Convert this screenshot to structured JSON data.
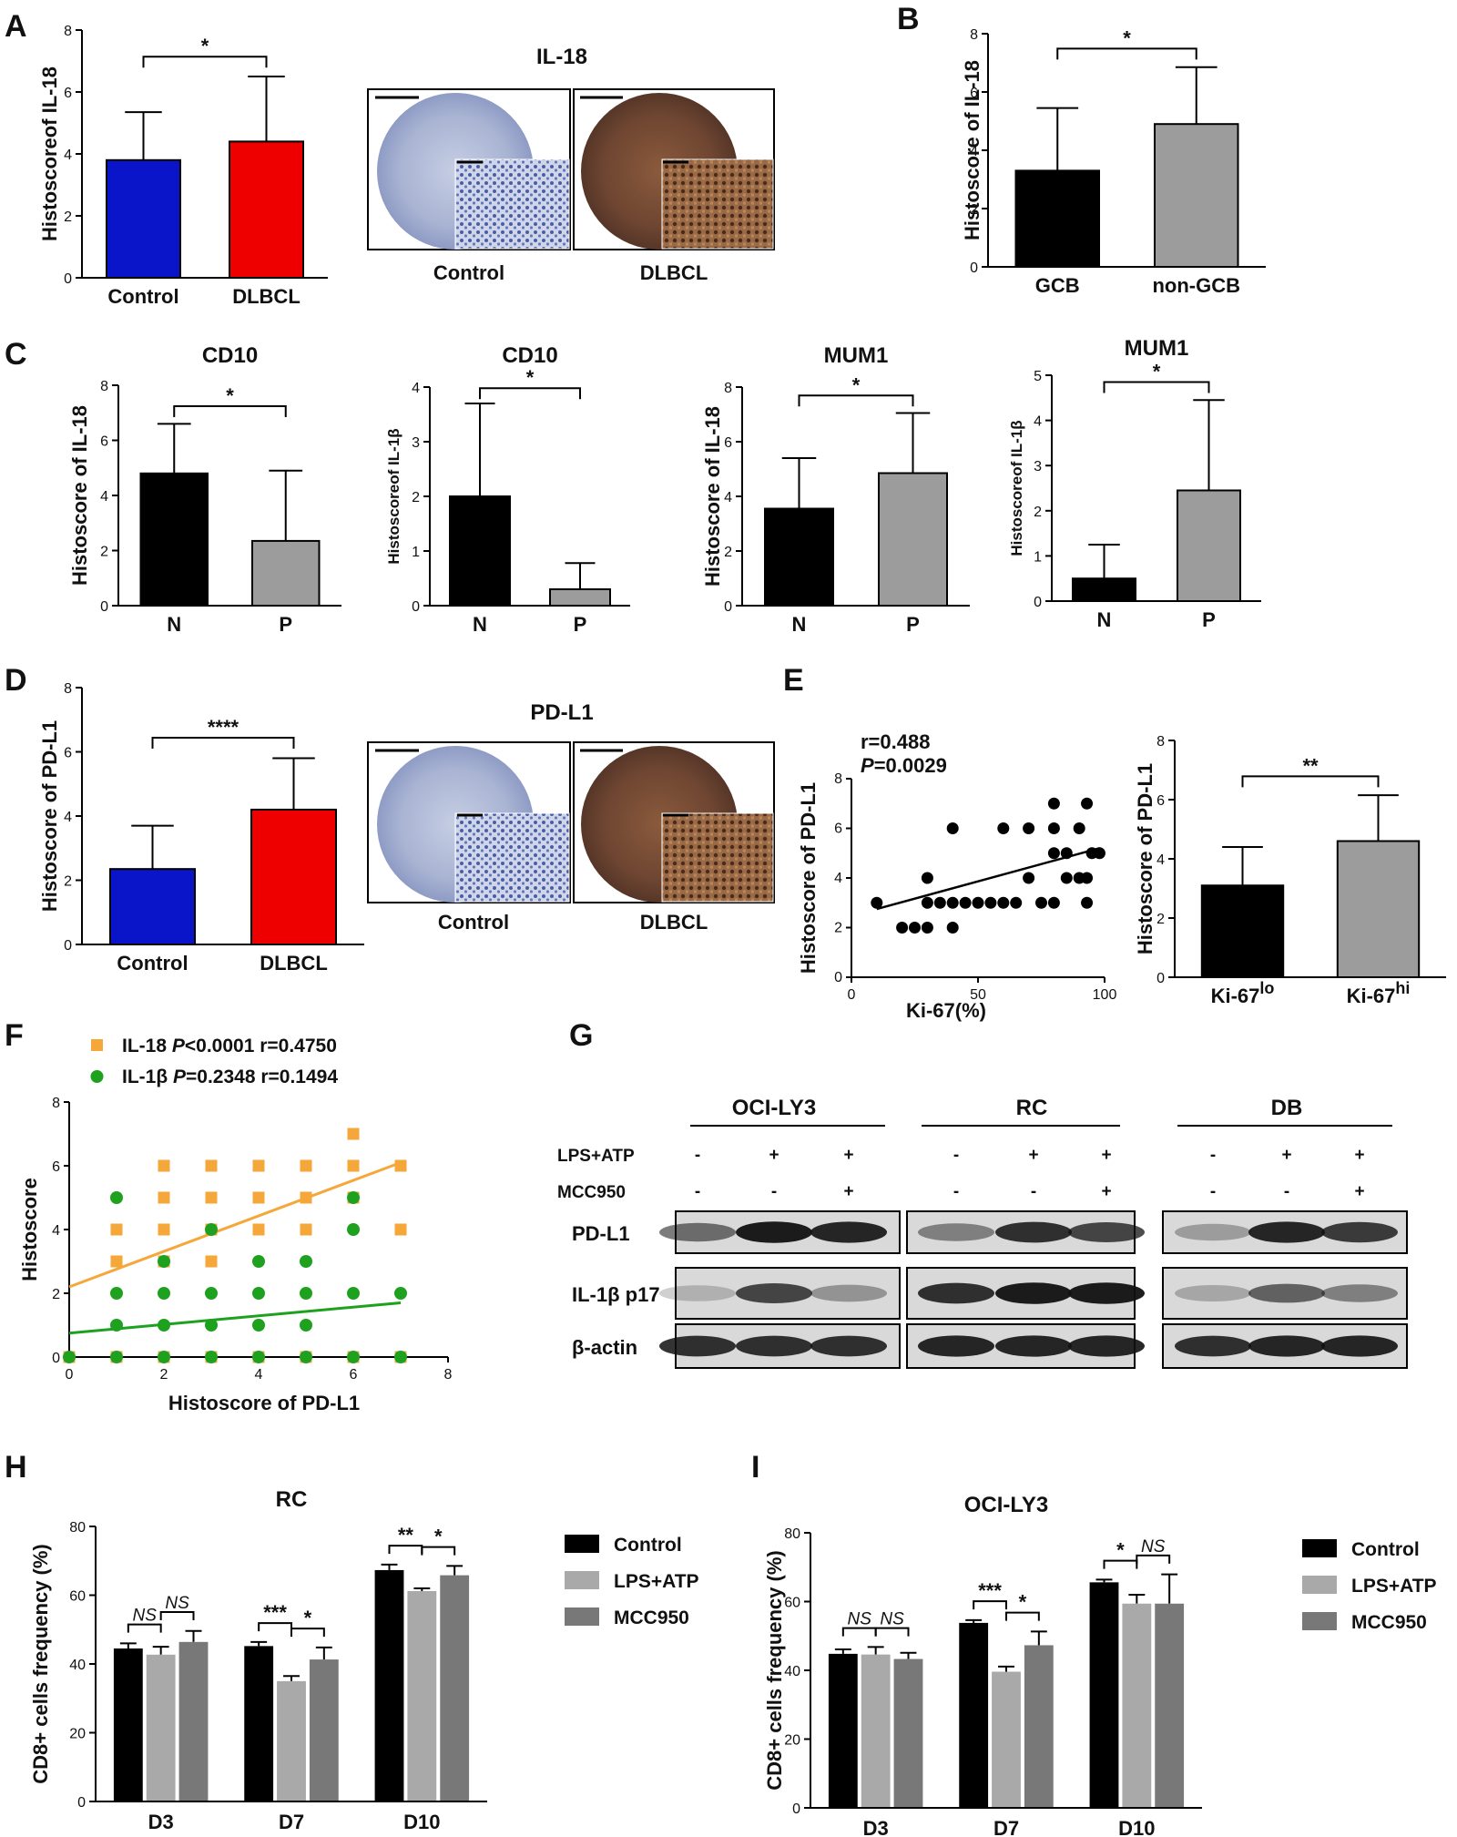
{
  "panels": {
    "A": {
      "label": "A",
      "image_title": "IL-18",
      "image_captions": [
        "Control",
        "DLBCL"
      ]
    },
    "B": {
      "label": "B"
    },
    "C": {
      "label": "C"
    },
    "D": {
      "label": "D",
      "image_title": "PD-L1",
      "image_captions": [
        "Control",
        "DLBCL"
      ]
    },
    "E": {
      "label": "E"
    },
    "F": {
      "label": "F"
    },
    "G": {
      "label": "G"
    },
    "H": {
      "label": "H"
    },
    "I": {
      "label": "I"
    }
  },
  "western_blot": {
    "cell_lines": [
      "OCI-LY3",
      "RC",
      "DB"
    ],
    "treatments": [
      {
        "name": "LPS+ATP",
        "signs": [
          "-",
          "+",
          "+"
        ]
      },
      {
        "name": "MCC950",
        "signs": [
          "-",
          "-",
          "+"
        ]
      }
    ],
    "rows": [
      "PD-L1",
      "IL-1β p17",
      "β-actin"
    ]
  },
  "colors": {
    "blue": "#0a14c8",
    "red": "#ee0000",
    "black": "#000000",
    "gray": "#9c9c9c",
    "light_gray": "#a9a9a9",
    "dark_gray": "#787878",
    "orange": "#f6a73a",
    "green": "#1ea11e"
  },
  "chart_data": [
    {
      "id": "A",
      "type": "bar",
      "title": "",
      "ylabel": "Histoscoreof IL-18",
      "xlabel": "",
      "categories": [
        "Control",
        "DLBCL"
      ],
      "values": [
        3.8,
        4.4
      ],
      "errors": [
        1.55,
        2.1
      ],
      "colors": [
        "#0a14c8",
        "#ee0000"
      ],
      "ylim": [
        0,
        8
      ],
      "yticks": [
        0,
        2,
        4,
        6,
        8
      ],
      "significance": [
        {
          "from": 0,
          "to": 1,
          "label": "*"
        }
      ]
    },
    {
      "id": "B",
      "type": "bar",
      "title": "",
      "ylabel": "Histoscore of IL-18",
      "xlabel": "",
      "categories": [
        "GCB",
        "non-GCB"
      ],
      "values": [
        3.3,
        4.9
      ],
      "errors": [
        2.15,
        1.95
      ],
      "colors": [
        "#000000",
        "#9c9c9c"
      ],
      "ylim": [
        0,
        8
      ],
      "yticks": [
        0,
        2,
        4,
        6,
        8
      ],
      "significance": [
        {
          "from": 0,
          "to": 1,
          "label": "*"
        }
      ]
    },
    {
      "id": "C1",
      "type": "bar",
      "title": "CD10",
      "ylabel": "Histoscore of IL-18",
      "xlabel": "",
      "categories": [
        "N",
        "P"
      ],
      "values": [
        4.8,
        2.35
      ],
      "errors": [
        1.8,
        2.55
      ],
      "colors": [
        "#000000",
        "#9c9c9c"
      ],
      "ylim": [
        0,
        8
      ],
      "yticks": [
        0,
        2,
        4,
        6,
        8
      ],
      "significance": [
        {
          "from": 0,
          "to": 1,
          "label": "*"
        }
      ]
    },
    {
      "id": "C2",
      "type": "bar",
      "title": "CD10",
      "ylabel": "Histoscoreof IL-1β",
      "xlabel": "",
      "categories": [
        "N",
        "P"
      ],
      "values": [
        2.0,
        0.3
      ],
      "errors": [
        1.7,
        0.48
      ],
      "colors": [
        "#000000",
        "#9c9c9c"
      ],
      "ylim": [
        0,
        4
      ],
      "yticks": [
        0,
        1,
        2,
        3,
        4
      ],
      "significance": [
        {
          "from": 0,
          "to": 1,
          "label": "*"
        }
      ]
    },
    {
      "id": "C3",
      "type": "bar",
      "title": "MUM1",
      "ylabel": "Histoscore of IL-18",
      "xlabel": "",
      "categories": [
        "N",
        "P"
      ],
      "values": [
        3.55,
        4.85
      ],
      "errors": [
        1.85,
        2.2
      ],
      "colors": [
        "#000000",
        "#9c9c9c"
      ],
      "ylim": [
        0,
        8
      ],
      "yticks": [
        0,
        2,
        4,
        6,
        8
      ],
      "significance": [
        {
          "from": 0,
          "to": 1,
          "label": "*"
        }
      ]
    },
    {
      "id": "C4",
      "type": "bar",
      "title": "MUM1",
      "ylabel": "Histoscoreof IL-1β",
      "xlabel": "",
      "categories": [
        "N",
        "P"
      ],
      "values": [
        0.5,
        2.45
      ],
      "errors": [
        0.75,
        2.0
      ],
      "colors": [
        "#000000",
        "#9c9c9c"
      ],
      "ylim": [
        0,
        5
      ],
      "yticks": [
        0,
        1,
        2,
        3,
        4,
        5
      ],
      "significance": [
        {
          "from": 0,
          "to": 1,
          "label": "*"
        }
      ]
    },
    {
      "id": "D",
      "type": "bar",
      "title": "",
      "ylabel": "Histoscore of PD-L1",
      "xlabel": "",
      "categories": [
        "Control",
        "DLBCL"
      ],
      "values": [
        2.35,
        4.2
      ],
      "errors": [
        1.35,
        1.6
      ],
      "colors": [
        "#0a14c8",
        "#ee0000"
      ],
      "ylim": [
        0,
        8
      ],
      "yticks": [
        0,
        2,
        4,
        6,
        8
      ],
      "significance": [
        {
          "from": 0,
          "to": 1,
          "label": "****"
        }
      ]
    },
    {
      "id": "E1",
      "type": "scatter",
      "title": "",
      "ylabel": "Histoscore of PD-L1",
      "xlabel": "Ki-67(%)",
      "annotations": [
        "r=0.488",
        "P=0.0029"
      ],
      "xlim": [
        0,
        100
      ],
      "ylim": [
        0,
        8
      ],
      "xticks": [
        0,
        50,
        100
      ],
      "yticks": [
        0,
        2,
        4,
        6,
        8
      ],
      "points": [
        [
          10,
          3
        ],
        [
          20,
          2
        ],
        [
          25,
          2
        ],
        [
          30,
          3
        ],
        [
          30,
          2
        ],
        [
          30,
          4
        ],
        [
          35,
          3
        ],
        [
          40,
          3
        ],
        [
          40,
          6
        ],
        [
          40,
          2
        ],
        [
          45,
          3
        ],
        [
          50,
          3
        ],
        [
          55,
          3
        ],
        [
          60,
          6
        ],
        [
          60,
          3
        ],
        [
          65,
          3
        ],
        [
          70,
          6
        ],
        [
          70,
          4
        ],
        [
          75,
          3
        ],
        [
          80,
          7
        ],
        [
          80,
          6
        ],
        [
          80,
          5
        ],
        [
          80,
          3
        ],
        [
          85,
          5
        ],
        [
          85,
          4
        ],
        [
          90,
          6
        ],
        [
          90,
          4
        ],
        [
          93,
          7
        ],
        [
          93,
          4
        ],
        [
          93,
          3
        ],
        [
          95,
          5
        ],
        [
          98,
          5
        ]
      ],
      "fit": {
        "x": [
          10,
          98
        ],
        "y": [
          2.75,
          5.2
        ]
      }
    },
    {
      "id": "E2",
      "type": "bar",
      "title": "",
      "ylabel": "Histoscore of PD-L1",
      "xlabel": "",
      "categories": [
        "Ki-67lo",
        "Ki-67hi"
      ],
      "values": [
        3.1,
        4.6
      ],
      "errors": [
        1.3,
        1.55
      ],
      "colors": [
        "#000000",
        "#9c9c9c"
      ],
      "ylim": [
        0,
        8
      ],
      "yticks": [
        0,
        2,
        4,
        6,
        8
      ],
      "significance": [
        {
          "from": 0,
          "to": 1,
          "label": "**"
        }
      ]
    },
    {
      "id": "F",
      "type": "scatter",
      "title": "",
      "ylabel": "Histoscore",
      "xlabel": "Histoscore of PD-L1",
      "xlim": [
        0,
        8
      ],
      "ylim": [
        0,
        8
      ],
      "xticks": [
        0,
        2,
        4,
        6,
        8
      ],
      "yticks": [
        0,
        2,
        4,
        6,
        8
      ],
      "series": [
        {
          "name": "IL-18",
          "legend": "IL-18 P<0.0001 r=0.4750",
          "color": "#f6a73a",
          "marker": "square",
          "points": [
            [
              1,
              3
            ],
            [
              1,
              4
            ],
            [
              2,
              6
            ],
            [
              2,
              5
            ],
            [
              2,
              4
            ],
            [
              2,
              3
            ],
            [
              3,
              6
            ],
            [
              3,
              5
            ],
            [
              3,
              4
            ],
            [
              3,
              3
            ],
            [
              4,
              6
            ],
            [
              4,
              5
            ],
            [
              4,
              4
            ],
            [
              5,
              6
            ],
            [
              5,
              5
            ],
            [
              5,
              4
            ],
            [
              6,
              7
            ],
            [
              6,
              6
            ],
            [
              6,
              5
            ],
            [
              7,
              6
            ],
            [
              7,
              4
            ],
            [
              0,
              0
            ],
            [
              1,
              0
            ],
            [
              2,
              0
            ],
            [
              3,
              0
            ],
            [
              4,
              0
            ],
            [
              5,
              0
            ],
            [
              6,
              0
            ],
            [
              7,
              0
            ]
          ],
          "fit": {
            "x": [
              0,
              7
            ],
            "y": [
              2.2,
              6.1
            ]
          }
        },
        {
          "name": "IL-1β",
          "legend": "IL-1β P=0.2348 r=0.1494",
          "color": "#1ea11e",
          "marker": "circle",
          "points": [
            [
              1,
              5
            ],
            [
              1,
              2
            ],
            [
              1,
              1
            ],
            [
              1,
              0
            ],
            [
              2,
              3
            ],
            [
              2,
              2
            ],
            [
              2,
              1
            ],
            [
              2,
              0
            ],
            [
              3,
              4
            ],
            [
              3,
              2
            ],
            [
              3,
              1
            ],
            [
              3,
              0
            ],
            [
              4,
              3
            ],
            [
              4,
              2
            ],
            [
              4,
              1
            ],
            [
              4,
              0
            ],
            [
              5,
              3
            ],
            [
              5,
              2
            ],
            [
              5,
              1
            ],
            [
              5,
              0
            ],
            [
              6,
              5
            ],
            [
              6,
              4
            ],
            [
              6,
              2
            ],
            [
              6,
              0
            ],
            [
              7,
              2
            ],
            [
              7,
              0
            ],
            [
              0,
              0
            ]
          ],
          "fit": {
            "x": [
              0,
              7
            ],
            "y": [
              0.75,
              1.7
            ]
          }
        }
      ]
    },
    {
      "id": "H",
      "type": "bar",
      "title": "RC",
      "ylabel": "CD8+ cells frequency (%)",
      "xlabel": "",
      "categories": [
        "D3",
        "D7",
        "D10"
      ],
      "series": [
        {
          "name": "Control",
          "color": "#000000",
          "values": [
            44.5,
            45.2,
            67.3
          ],
          "errors": [
            1.5,
            1.2,
            1.6
          ]
        },
        {
          "name": "LPS+ATP",
          "color": "#a9a9a9",
          "values": [
            42.7,
            35.0,
            61.2
          ],
          "errors": [
            2.3,
            1.5,
            0.8
          ]
        },
        {
          "name": "MCC950",
          "color": "#787878",
          "values": [
            46.4,
            41.3,
            65.8
          ],
          "errors": [
            3.2,
            3.5,
            2.7
          ]
        }
      ],
      "ylim": [
        0,
        80
      ],
      "yticks": [
        0,
        20,
        40,
        60,
        80
      ],
      "significance": [
        {
          "group": 0,
          "from": 0,
          "to": 1,
          "label": "NS"
        },
        {
          "group": 0,
          "from": 1,
          "to": 2,
          "label": "NS"
        },
        {
          "group": 1,
          "from": 0,
          "to": 1,
          "label": "***"
        },
        {
          "group": 1,
          "from": 1,
          "to": 2,
          "label": "*"
        },
        {
          "group": 2,
          "from": 0,
          "to": 1,
          "label": "**"
        },
        {
          "group": 2,
          "from": 1,
          "to": 2,
          "label": "*"
        }
      ]
    },
    {
      "id": "I",
      "type": "bar",
      "title": "OCI-LY3",
      "ylabel": "CD8+ cells frequency (%)",
      "xlabel": "",
      "categories": [
        "D3",
        "D7",
        "D10"
      ],
      "series": [
        {
          "name": "Control",
          "color": "#000000",
          "values": [
            44.8,
            53.8,
            65.6
          ],
          "errors": [
            1.3,
            0.8,
            0.8
          ]
        },
        {
          "name": "LPS+ATP",
          "color": "#a9a9a9",
          "values": [
            44.6,
            39.6,
            59.4
          ],
          "errors": [
            2.2,
            1.5,
            2.6
          ]
        },
        {
          "name": "MCC950",
          "color": "#787878",
          "values": [
            43.3,
            47.3,
            59.4
          ],
          "errors": [
            1.8,
            4.0,
            8.5
          ]
        }
      ],
      "ylim": [
        0,
        80
      ],
      "yticks": [
        0,
        20,
        40,
        60,
        80
      ],
      "significance": [
        {
          "group": 0,
          "from": 0,
          "to": 1,
          "label": "NS"
        },
        {
          "group": 0,
          "from": 1,
          "to": 2,
          "label": "NS"
        },
        {
          "group": 1,
          "from": 0,
          "to": 1,
          "label": "***"
        },
        {
          "group": 1,
          "from": 1,
          "to": 2,
          "label": "*"
        },
        {
          "group": 2,
          "from": 0,
          "to": 1,
          "label": "*"
        },
        {
          "group": 2,
          "from": 1,
          "to": 2,
          "label": "NS"
        }
      ]
    }
  ]
}
